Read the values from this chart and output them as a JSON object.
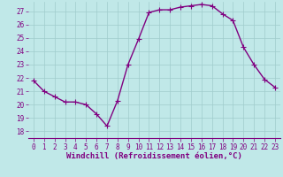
{
  "x": [
    0,
    1,
    2,
    3,
    4,
    5,
    6,
    7,
    8,
    9,
    10,
    11,
    12,
    13,
    14,
    15,
    16,
    17,
    18,
    19,
    20,
    21,
    22,
    23
  ],
  "y": [
    21.8,
    21.0,
    20.6,
    20.2,
    20.2,
    20.0,
    19.3,
    18.4,
    20.3,
    23.0,
    24.9,
    26.9,
    27.1,
    27.1,
    27.3,
    27.4,
    27.5,
    27.4,
    26.8,
    26.3,
    24.3,
    23.0,
    21.9,
    21.3
  ],
  "color": "#800080",
  "bg_color": "#c0e8e8",
  "grid_color": "#a0cccc",
  "xlabel": "Windchill (Refroidissement éolien,°C)",
  "ylim": [
    17.5,
    27.7
  ],
  "yticks": [
    18,
    19,
    20,
    21,
    22,
    23,
    24,
    25,
    26,
    27
  ],
  "xticks": [
    0,
    1,
    2,
    3,
    4,
    5,
    6,
    7,
    8,
    9,
    10,
    11,
    12,
    13,
    14,
    15,
    16,
    17,
    18,
    19,
    20,
    21,
    22,
    23
  ],
  "marker": "+",
  "marker_size": 4,
  "linewidth": 1.0,
  "xlabel_fontsize": 6.5,
  "tick_fontsize": 5.5
}
